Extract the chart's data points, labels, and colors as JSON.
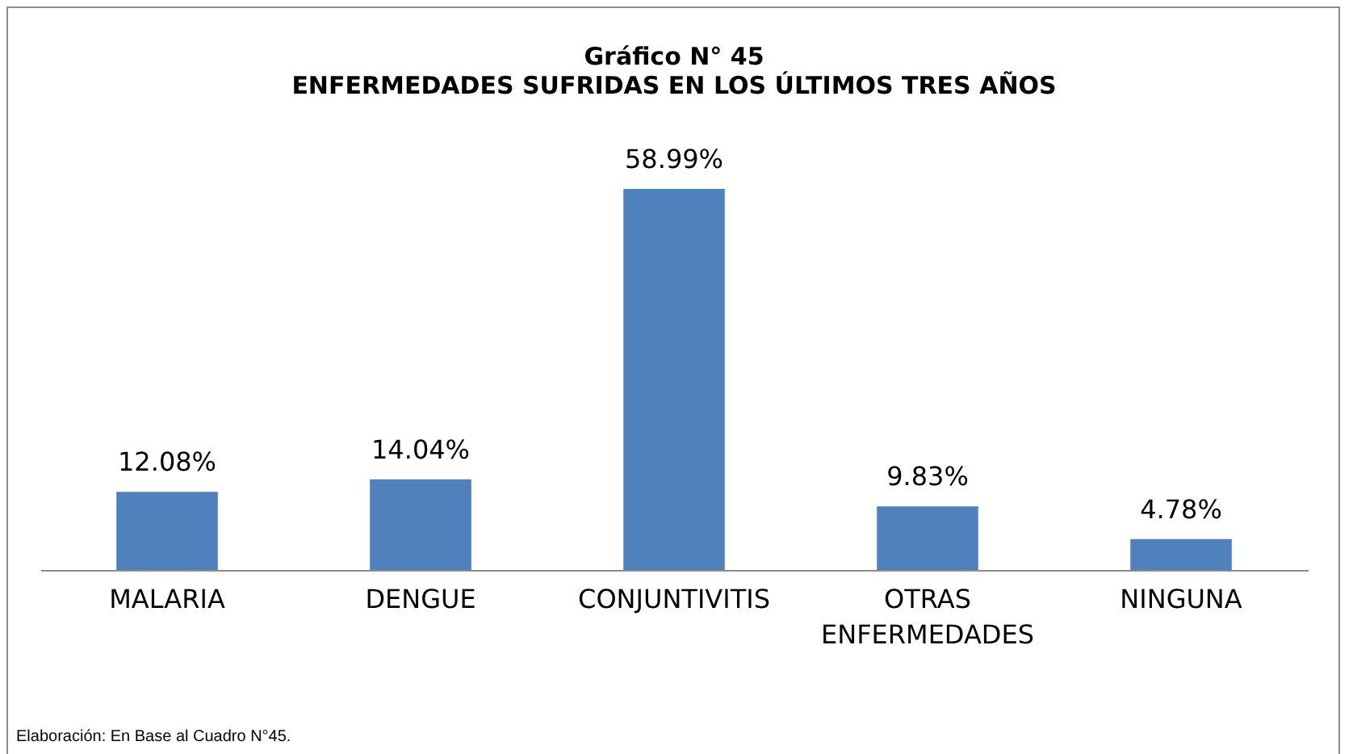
{
  "chart_data": {
    "type": "bar",
    "title": "Gráfico N° 45",
    "subtitle": "ENFERMEDADES SUFRIDAS EN LOS ÚLTIMOS TRES AÑOS",
    "categories": [
      "MALARIA",
      "DENGUE",
      "CONJUNTIVITIS",
      "OTRAS ENFERMEDADES",
      "NINGUNA"
    ],
    "values": [
      12.08,
      14.04,
      58.99,
      9.83,
      4.78
    ],
    "value_labels": [
      "12.08%",
      "14.04%",
      "58.99%",
      "9.83%",
      "4.78%"
    ],
    "color": "#4f81bd",
    "annotations": [
      "Elaboración: En Base al Cuadro N°45."
    ]
  }
}
